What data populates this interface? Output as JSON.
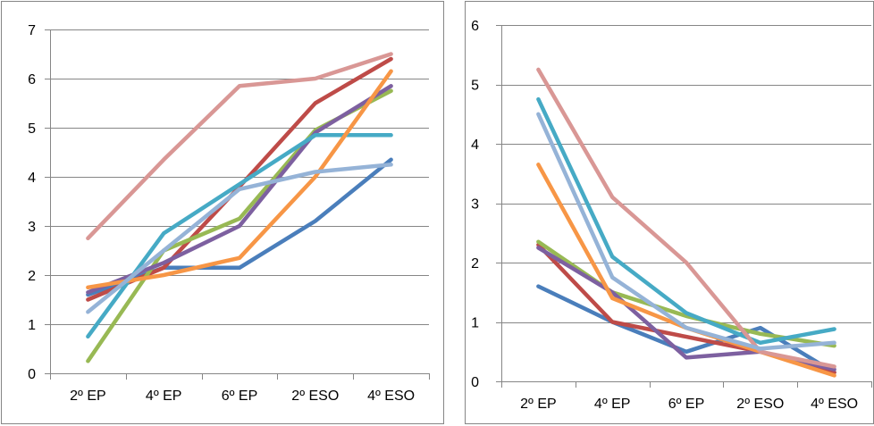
{
  "chart_data": [
    {
      "type": "line",
      "title": "",
      "xlabel": "",
      "ylabel": "",
      "categories": [
        "2º EP",
        "4º EP",
        "6º EP",
        "2º ESO",
        "4º ESO"
      ],
      "ylim": [
        0,
        7
      ],
      "yticks": [
        "0",
        "1",
        "2",
        "3",
        "4",
        "5",
        "6",
        "7"
      ],
      "grid": true,
      "legend": "none",
      "series": [
        {
          "color": "#4a7ebb",
          "values": [
            1.6,
            2.15,
            2.15,
            3.1,
            4.35
          ]
        },
        {
          "color": "#be4b48",
          "values": [
            1.5,
            2.15,
            3.8,
            5.5,
            6.4
          ]
        },
        {
          "color": "#98b954",
          "values": [
            0.25,
            2.5,
            3.15,
            4.95,
            5.75
          ]
        },
        {
          "color": "#7d60a0",
          "values": [
            1.65,
            2.25,
            3.0,
            4.9,
            5.85
          ]
        },
        {
          "color": "#46aac5",
          "values": [
            0.75,
            2.85,
            3.85,
            4.85,
            4.85
          ]
        },
        {
          "color": "#f79646",
          "values": [
            1.75,
            2.0,
            2.35,
            4.0,
            6.15
          ]
        },
        {
          "color": "#d99795",
          "values": [
            2.75,
            4.35,
            5.85,
            6.0,
            6.5
          ]
        },
        {
          "color": "#95b3d7",
          "values": [
            1.25,
            2.5,
            3.75,
            4.1,
            4.25
          ]
        }
      ]
    },
    {
      "type": "line",
      "title": "",
      "xlabel": "",
      "ylabel": "",
      "categories": [
        "2º EP",
        "4º EP",
        "6º EP",
        "2º ESO",
        "4º ESO"
      ],
      "ylim": [
        0,
        6
      ],
      "yticks": [
        "0",
        "1",
        "2",
        "3",
        "4",
        "5",
        "6"
      ],
      "grid": true,
      "legend": "none",
      "series": [
        {
          "color": "#4a7ebb",
          "values": [
            1.6,
            1.0,
            0.5,
            0.9,
            0.15
          ]
        },
        {
          "color": "#be4b48",
          "values": [
            2.3,
            1.0,
            0.75,
            0.5,
            0.15
          ]
        },
        {
          "color": "#98b954",
          "values": [
            2.35,
            1.5,
            1.1,
            0.8,
            0.6
          ]
        },
        {
          "color": "#7d60a0",
          "values": [
            2.25,
            1.5,
            0.4,
            0.5,
            0.2
          ]
        },
        {
          "color": "#46aac5",
          "values": [
            4.75,
            2.1,
            1.15,
            0.65,
            0.88
          ]
        },
        {
          "color": "#f79646",
          "values": [
            3.65,
            1.4,
            0.9,
            0.5,
            0.1
          ]
        },
        {
          "color": "#d99795",
          "values": [
            5.25,
            3.1,
            2.0,
            0.5,
            0.25
          ]
        },
        {
          "color": "#95b3d7",
          "values": [
            4.5,
            1.75,
            0.9,
            0.55,
            0.65
          ]
        }
      ]
    }
  ]
}
